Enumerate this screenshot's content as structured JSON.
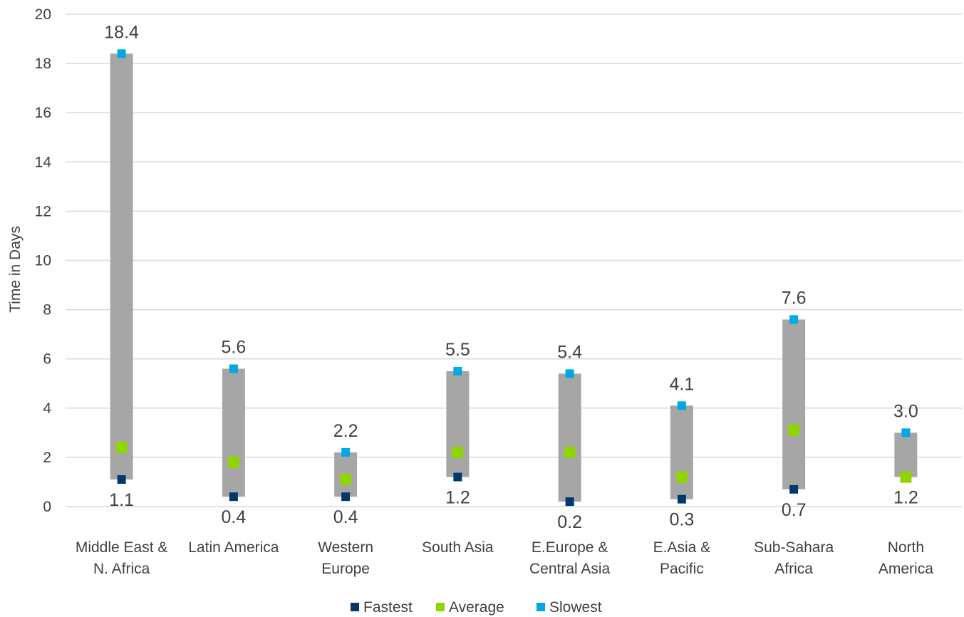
{
  "chart_data": {
    "type": "range",
    "title": "",
    "xlabel": "",
    "ylabel": "Time in Days",
    "ylim": [
      0,
      20
    ],
    "yticks": [
      0,
      2,
      4,
      6,
      8,
      10,
      12,
      14,
      16,
      18,
      20
    ],
    "grid": true,
    "legend_position": "bottom",
    "categories": [
      [
        "Middle East &",
        "N. Africa"
      ],
      [
        "Latin America"
      ],
      [
        "Western",
        "Europe"
      ],
      [
        "South Asia"
      ],
      [
        "E.Europe &",
        "Central Asia"
      ],
      [
        "E.Asia &",
        "Pacific"
      ],
      [
        "Sub-Sahara",
        "Africa"
      ],
      [
        "North",
        "America"
      ]
    ],
    "series": [
      {
        "name": "Fastest",
        "color": "#00386B",
        "values": [
          1.1,
          0.4,
          0.4,
          1.2,
          0.2,
          0.3,
          0.7,
          1.2
        ]
      },
      {
        "name": "Average",
        "color": "#92D400",
        "values": [
          2.4,
          1.8,
          1.1,
          2.2,
          2.2,
          1.2,
          3.1,
          1.2
        ]
      },
      {
        "name": "Slowest",
        "color": "#00A8E6",
        "values": [
          18.4,
          5.6,
          2.2,
          5.5,
          5.4,
          4.1,
          7.6,
          3.0
        ]
      }
    ],
    "data_labels": {
      "Fastest": [
        "1.1",
        "0.4",
        "0.4",
        "1.2",
        "0.2",
        "0.3",
        "0.7",
        "1.2"
      ],
      "Slowest": [
        "18.4",
        "5.6",
        "2.2",
        "5.5",
        "5.4",
        "4.1",
        "7.6",
        "3.0"
      ]
    },
    "range_bar_color": "#A6A6A6",
    "gridline_color": "#D9D9D9"
  }
}
